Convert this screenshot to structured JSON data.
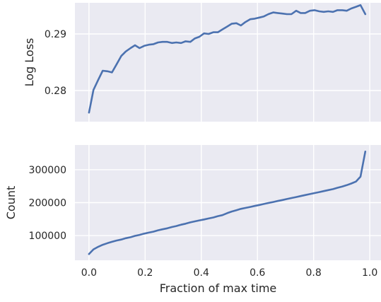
{
  "chart_data": [
    {
      "type": "line",
      "ylabel": "Log Loss",
      "xlabel": "",
      "xlim": [
        -0.05,
        1.04
      ],
      "ylim": [
        0.2745,
        0.2955
      ],
      "x_ticks": [
        0.0,
        0.2,
        0.4,
        0.6,
        0.8,
        1.0
      ],
      "y_ticks": [
        0.28,
        0.29
      ],
      "y_tick_labels": [
        "0.28",
        "0.29"
      ],
      "show_x_tick_labels": false,
      "grid": true,
      "series": [
        {
          "color": "#4c72b0",
          "x": [
            0.0,
            0.016,
            0.033,
            0.049,
            0.066,
            0.082,
            0.098,
            0.115,
            0.131,
            0.148,
            0.164,
            0.18,
            0.197,
            0.213,
            0.23,
            0.246,
            0.262,
            0.279,
            0.295,
            0.311,
            0.328,
            0.344,
            0.361,
            0.377,
            0.393,
            0.41,
            0.426,
            0.443,
            0.459,
            0.475,
            0.492,
            0.508,
            0.525,
            0.541,
            0.557,
            0.574,
            0.59,
            0.607,
            0.623,
            0.639,
            0.656,
            0.672,
            0.689,
            0.705,
            0.721,
            0.738,
            0.754,
            0.77,
            0.787,
            0.803,
            0.82,
            0.836,
            0.852,
            0.869,
            0.885,
            0.902,
            0.918,
            0.934,
            0.951,
            0.967,
            0.984
          ],
          "y": [
            0.2761,
            0.2801,
            0.2819,
            0.2835,
            0.2834,
            0.2832,
            0.2846,
            0.2861,
            0.2869,
            0.2875,
            0.288,
            0.2875,
            0.2879,
            0.2881,
            0.2882,
            0.2885,
            0.2886,
            0.2886,
            0.2884,
            0.2885,
            0.2884,
            0.2887,
            0.2886,
            0.2892,
            0.2895,
            0.2901,
            0.29,
            0.2903,
            0.2903,
            0.2908,
            0.2913,
            0.2918,
            0.2919,
            0.2915,
            0.2921,
            0.2926,
            0.2927,
            0.2929,
            0.2931,
            0.2935,
            0.2938,
            0.2937,
            0.2936,
            0.2935,
            0.2935,
            0.2941,
            0.2937,
            0.2937,
            0.2941,
            0.2942,
            0.294,
            0.2939,
            0.294,
            0.2939,
            0.2942,
            0.2942,
            0.2941,
            0.2945,
            0.2948,
            0.2951,
            0.2935
          ]
        }
      ]
    },
    {
      "type": "line",
      "ylabel": "Count",
      "xlabel": "Fraction of max time",
      "xlim": [
        -0.05,
        1.04
      ],
      "ylim": [
        25000,
        375000
      ],
      "x_ticks": [
        0.0,
        0.2,
        0.4,
        0.6,
        0.8,
        1.0
      ],
      "x_tick_labels": [
        "0.0",
        "0.2",
        "0.4",
        "0.6",
        "0.8",
        "1.0"
      ],
      "y_ticks": [
        100000,
        200000,
        300000
      ],
      "y_tick_labels": [
        "100000",
        "200000",
        "300000"
      ],
      "show_x_tick_labels": true,
      "grid": true,
      "series": [
        {
          "color": "#4c72b0",
          "x": [
            0.0,
            0.016,
            0.033,
            0.049,
            0.066,
            0.082,
            0.098,
            0.115,
            0.131,
            0.148,
            0.164,
            0.18,
            0.197,
            0.213,
            0.23,
            0.246,
            0.262,
            0.279,
            0.295,
            0.311,
            0.328,
            0.344,
            0.361,
            0.377,
            0.393,
            0.41,
            0.426,
            0.443,
            0.459,
            0.475,
            0.492,
            0.508,
            0.525,
            0.541,
            0.557,
            0.574,
            0.59,
            0.607,
            0.623,
            0.639,
            0.656,
            0.672,
            0.689,
            0.705,
            0.721,
            0.738,
            0.754,
            0.77,
            0.787,
            0.803,
            0.82,
            0.836,
            0.852,
            0.869,
            0.885,
            0.902,
            0.918,
            0.934,
            0.951,
            0.967,
            0.984
          ],
          "y": [
            44000,
            58000,
            66000,
            72000,
            77000,
            81000,
            85000,
            88000,
            92000,
            95000,
            99000,
            102000,
            106000,
            109000,
            112000,
            116000,
            119000,
            122000,
            126000,
            129000,
            133000,
            136000,
            140000,
            143000,
            146000,
            149000,
            152000,
            155000,
            159000,
            162000,
            168000,
            173000,
            177000,
            181000,
            184000,
            187000,
            190000,
            193000,
            196000,
            199000,
            202000,
            205000,
            208000,
            211000,
            214000,
            217000,
            220000,
            223000,
            226000,
            229000,
            232000,
            235000,
            238000,
            241000,
            245000,
            249000,
            253000,
            258000,
            264000,
            279000,
            355000
          ]
        }
      ]
    }
  ]
}
